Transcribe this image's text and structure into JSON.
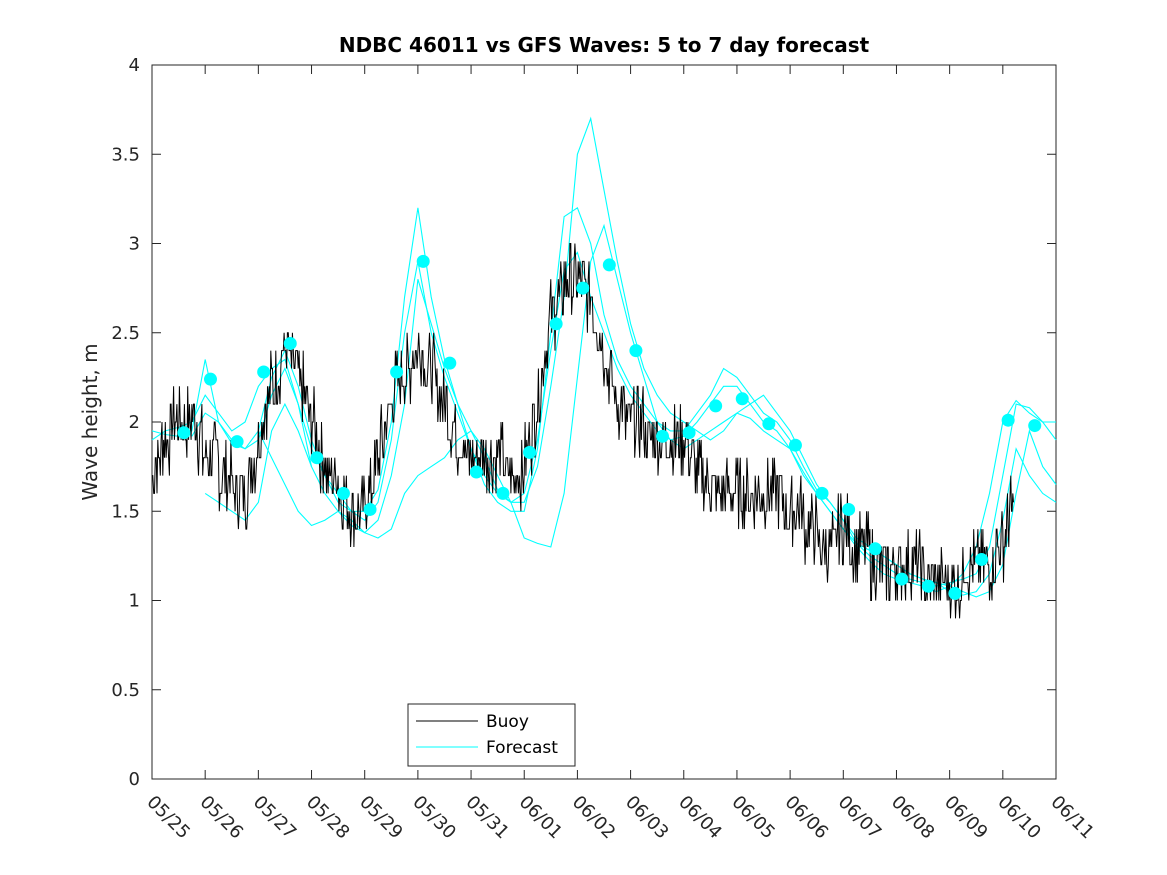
{
  "chart_data": {
    "type": "line",
    "title": "NDBC 46011 vs GFS Waves: 5 to 7 day forecast",
    "ylabel": "Wave height, m",
    "xlabel": "",
    "ylim": [
      0,
      4
    ],
    "yticks": [
      "0",
      "0.5",
      "1",
      "1.5",
      "2",
      "2.5",
      "3",
      "3.5",
      "4"
    ],
    "xlim": [
      0,
      17
    ],
    "xticks": [
      "05/25",
      "05/26",
      "05/27",
      "05/28",
      "05/29",
      "05/30",
      "05/31",
      "06/01",
      "06/02",
      "06/03",
      "06/04",
      "06/05",
      "06/06",
      "06/07",
      "06/08",
      "06/09",
      "06/10",
      "06/11"
    ],
    "grid": false,
    "legend_position": "bottom-left",
    "colors": {
      "buoy": "#000000",
      "forecast": "#00ffff",
      "axes": "#262626"
    },
    "series": [
      {
        "name": "Buoy",
        "style": "line",
        "x": [
          0,
          0.25,
          0.5,
          0.75,
          1,
          1.25,
          1.5,
          1.75,
          2,
          2.25,
          2.5,
          2.75,
          3,
          3.25,
          3.5,
          3.75,
          4,
          4.25,
          4.5,
          4.75,
          5,
          5.25,
          5.5,
          5.75,
          6,
          6.25,
          6.5,
          6.75,
          7,
          7.25,
          7.5,
          7.75,
          8,
          8.25,
          8.5,
          8.75,
          9,
          9.25,
          9.5,
          9.75,
          10,
          10.25,
          10.5,
          10.75,
          11,
          11.25,
          11.5,
          11.75,
          12,
          12.25,
          12.5,
          12.75,
          13,
          13.25,
          13.5,
          13.75,
          14,
          14.25,
          14.5,
          14.75,
          15,
          15.25,
          15.5,
          15.75,
          16,
          16.2
        ],
        "y": [
          1.7,
          1.9,
          2.0,
          2.05,
          1.8,
          1.75,
          1.65,
          1.6,
          1.9,
          2.2,
          2.4,
          2.25,
          2.0,
          1.75,
          1.65,
          1.5,
          1.5,
          1.8,
          2.1,
          2.3,
          2.4,
          2.3,
          2.1,
          1.9,
          1.8,
          1.75,
          1.8,
          1.7,
          1.75,
          2.1,
          2.6,
          2.75,
          2.8,
          2.7,
          2.4,
          2.1,
          2.0,
          1.95,
          1.9,
          1.85,
          1.9,
          1.7,
          1.65,
          1.6,
          1.55,
          1.55,
          1.6,
          1.6,
          1.5,
          1.45,
          1.35,
          1.3,
          1.4,
          1.3,
          1.25,
          1.15,
          1.15,
          1.2,
          1.15,
          1.05,
          1.1,
          1.15,
          1.2,
          1.2,
          1.3,
          1.55
        ]
      },
      {
        "name": "Forecast",
        "style": "line",
        "lines": [
          {
            "x": [
              0,
              0.25,
              0.5,
              0.75,
              1,
              1.25,
              1.5,
              1.75,
              2,
              2.25,
              2.5,
              2.75,
              3
            ],
            "y": [
              1.95,
              1.93,
              1.92,
              1.95,
              2.35,
              2.0,
              1.88,
              1.85,
              1.9,
              2.15,
              2.3,
              2.1,
              1.75
            ]
          },
          {
            "x": [
              0,
              0.25,
              0.5,
              0.75,
              1,
              1.25,
              1.5,
              1.75,
              2,
              2.25,
              2.5,
              2.75,
              3,
              3.25,
              3.5,
              3.75,
              4,
              4.25,
              4.5,
              4.75,
              5,
              5.25,
              5.5,
              5.75,
              6,
              6.25,
              6.5,
              6.75,
              7,
              7.25,
              7.5,
              7.75,
              8,
              8.25,
              8.5,
              8.75,
              9,
              9.25,
              9.5,
              9.75,
              10,
              10.25,
              10.5,
              10.75,
              11,
              11.25,
              11.5,
              11.75,
              12,
              12.25,
              12.5,
              12.75,
              13,
              13.25,
              13.5,
              13.75,
              14,
              14.25,
              14.5,
              14.75,
              15,
              15.25,
              15.5,
              15.75,
              16,
              16.25,
              16.5,
              16.75,
              17
            ],
            "y": [
              1.9,
              1.95,
              1.97,
              2.0,
              2.15,
              2.05,
              1.95,
              2.0,
              2.2,
              2.3,
              2.35,
              2.1,
              1.85,
              1.7,
              1.6,
              1.5,
              1.45,
              1.55,
              1.9,
              2.5,
              2.9,
              2.5,
              2.25,
              2.05,
              1.85,
              1.7,
              1.6,
              1.55,
              1.6,
              1.9,
              2.4,
              2.85,
              2.95,
              2.7,
              2.5,
              2.3,
              2.15,
              2.05,
              1.95,
              1.9,
              1.92,
              2.0,
              2.1,
              2.2,
              2.2,
              2.1,
              2.0,
              1.95,
              1.85,
              1.7,
              1.6,
              1.5,
              1.4,
              1.3,
              1.22,
              1.15,
              1.12,
              1.1,
              1.08,
              1.05,
              1.08,
              1.15,
              1.3,
              1.6,
              2.0,
              2.12,
              2.05,
              2.0,
              1.9
            ]
          },
          {
            "x": [
              0.75,
              1,
              1.25,
              1.5,
              1.75,
              2,
              2.25,
              2.5,
              2.75,
              3,
              3.25,
              3.5,
              3.75,
              4,
              4.25,
              4.5,
              4.75,
              5,
              5.25,
              5.5,
              5.75,
              6,
              6.25,
              6.5,
              6.75,
              7,
              7.25,
              7.5,
              7.75,
              8,
              8.25,
              8.5,
              8.75,
              9,
              9.25,
              9.5,
              9.75,
              10,
              10.25,
              10.5,
              10.75,
              11,
              11.25,
              11.5,
              11.75,
              12,
              12.25,
              12.5,
              12.75,
              13,
              13.25,
              13.5,
              13.75,
              14,
              14.25,
              14.5,
              14.75,
              15,
              15.25,
              15.5,
              15.75,
              16,
              16.25,
              16.5,
              16.75,
              17
            ],
            "y": [
              1.92,
              2.05,
              2.0,
              1.9,
              1.85,
              1.95,
              2.25,
              2.4,
              2.2,
              1.9,
              1.7,
              1.55,
              1.5,
              1.5,
              1.62,
              2.0,
              2.7,
              3.2,
              2.7,
              2.35,
              2.1,
              1.85,
              1.65,
              1.55,
              1.5,
              1.5,
              1.85,
              2.5,
              3.15,
              3.2,
              3.0,
              2.6,
              2.35,
              2.2,
              2.1,
              2.0,
              1.95,
              1.95,
              2.05,
              2.15,
              2.3,
              2.25,
              2.15,
              2.05,
              2.0,
              1.9,
              1.75,
              1.62,
              1.55,
              1.45,
              1.32,
              1.25,
              1.2,
              1.15,
              1.12,
              1.1,
              1.08,
              1.1,
              1.12,
              1.15,
              1.3,
              1.7,
              2.1,
              2.08,
              2.0,
              2.0
            ]
          },
          {
            "x": [
              1,
              1.25,
              1.5,
              1.75,
              2,
              2.25,
              2.5,
              2.75,
              3,
              3.25,
              3.5,
              3.75,
              4,
              4.25,
              4.5,
              4.75,
              5,
              5.25,
              5.5,
              5.75,
              6,
              6.25,
              6.5,
              6.75,
              7,
              7.25,
              7.5,
              7.75,
              8,
              8.25,
              8.5,
              8.75,
              9,
              9.25,
              9.5,
              9.75,
              10,
              10.25,
              10.5,
              10.75,
              11,
              11.25,
              11.5,
              11.75,
              12,
              12.25,
              12.5,
              12.75,
              13,
              13.25,
              13.5,
              13.75,
              14,
              14.25,
              14.5,
              14.75,
              15,
              15.25,
              15.5,
              15.75,
              16,
              16.25,
              16.5,
              16.75,
              17
            ],
            "y": [
              1.6,
              1.55,
              1.5,
              1.45,
              1.55,
              1.95,
              2.1,
              1.95,
              1.75,
              1.6,
              1.5,
              1.42,
              1.38,
              1.45,
              1.7,
              2.1,
              2.8,
              2.55,
              2.3,
              2.1,
              1.95,
              1.8,
              1.62,
              1.55,
              1.55,
              1.75,
              2.2,
              2.7,
              3.5,
              3.7,
              3.3,
              2.9,
              2.55,
              2.3,
              2.15,
              2.05,
              2.0,
              1.95,
              1.9,
              1.95,
              2.05,
              2.1,
              2.15,
              2.05,
              1.95,
              1.8,
              1.65,
              1.55,
              1.45,
              1.35,
              1.3,
              1.25,
              1.2,
              1.15,
              1.12,
              1.1,
              1.05,
              1.03,
              1.05,
              1.15,
              1.45,
              1.85,
              1.7,
              1.6,
              1.55
            ]
          },
          {
            "x": [
              2,
              2.25,
              2.5,
              2.75,
              3,
              3.25,
              3.5,
              3.75,
              4,
              4.25,
              4.5,
              4.75,
              5,
              5.25,
              5.5,
              5.75,
              6,
              6.25,
              6.5,
              6.75,
              7,
              7.25,
              7.5,
              7.75,
              8,
              8.25,
              8.5,
              8.75,
              9,
              9.25,
              9.5,
              9.75,
              10,
              10.25,
              10.5,
              10.75,
              11,
              11.25,
              11.5,
              11.75,
              12,
              12.25,
              12.5,
              12.75,
              13,
              13.25,
              13.5,
              13.75,
              14,
              14.25,
              14.5,
              14.75,
              15,
              15.25,
              15.5,
              15.75,
              16,
              16.25,
              16.5,
              16.75,
              17
            ],
            "y": [
              1.95,
              1.8,
              1.65,
              1.5,
              1.42,
              1.45,
              1.5,
              1.45,
              1.38,
              1.35,
              1.4,
              1.6,
              1.7,
              1.75,
              1.8,
              1.9,
              1.95,
              1.85,
              1.7,
              1.55,
              1.35,
              1.32,
              1.3,
              1.6,
              2.25,
              2.9,
              3.1,
              2.8,
              2.5,
              2.25,
              2.0,
              1.9,
              1.85,
              1.9,
              1.95,
              2.0,
              2.05,
              2.02,
              1.95,
              1.9,
              1.85,
              1.72,
              1.6,
              1.5,
              1.4,
              1.32,
              1.28,
              1.25,
              1.2,
              1.15,
              1.12,
              1.1,
              1.08,
              1.05,
              1.02,
              1.05,
              1.2,
              1.6,
              1.95,
              1.75,
              1.65
            ]
          }
        ]
      },
      {
        "name": "Forecast markers",
        "style": "markers",
        "x": [
          0.6,
          1.1,
          1.6,
          2.1,
          2.6,
          3.1,
          3.6,
          4.1,
          4.6,
          5.1,
          5.6,
          6.1,
          6.6,
          7.1,
          7.6,
          8.1,
          8.6,
          9.1,
          9.6,
          10.1,
          10.6,
          11.1,
          11.6,
          12.1,
          12.6,
          13.1,
          13.6,
          14.1,
          14.6,
          15.1,
          15.6,
          16.1,
          16.6
        ],
        "y": [
          1.94,
          2.24,
          1.89,
          2.28,
          2.44,
          1.8,
          1.6,
          1.51,
          2.28,
          2.9,
          2.33,
          1.72,
          1.6,
          1.83,
          2.55,
          2.75,
          2.88,
          2.4,
          1.92,
          1.94,
          2.09,
          2.13,
          1.99,
          1.87,
          1.6,
          1.51,
          1.29,
          1.12,
          1.08,
          1.04,
          1.23,
          2.01,
          1.98
        ]
      }
    ]
  },
  "legend": {
    "items": [
      {
        "label": "Buoy",
        "color": "#000000"
      },
      {
        "label": "Forecast",
        "color": "#00ffff"
      }
    ]
  }
}
